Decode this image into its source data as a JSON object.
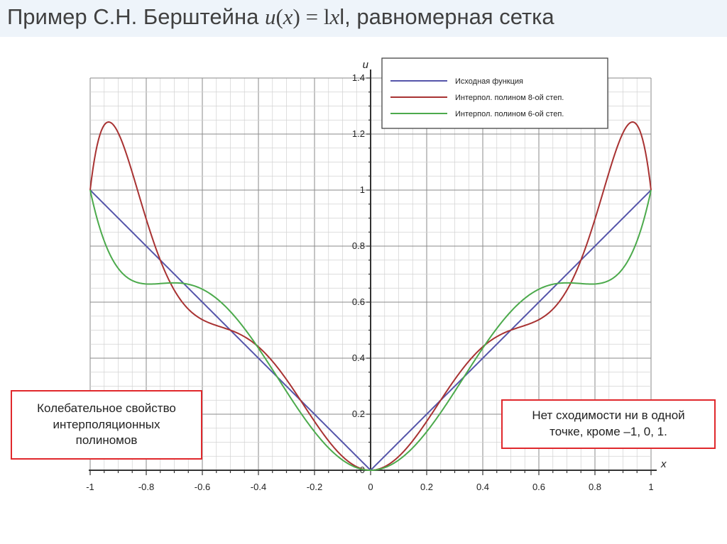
{
  "title": {
    "text_before": "Пример С.Н. Берштейна ",
    "fn_name": "u",
    "fn_open": "(",
    "fn_arg": "x",
    "fn_close": ")",
    "equals": " = l",
    "abs_arg": "x",
    "text_after": "l, равномерная сетка"
  },
  "notes": {
    "left": "Колебательное свойство\nинтерполяционных\nполиномов",
    "right": "Нет сходимости ни в одной\nточке, кроме –1, 0, 1."
  },
  "colors": {
    "original": "#5555aa",
    "poly8": "#a83232",
    "poly6": "#4caa4c",
    "note_border": "#e0282c",
    "title_bg": "#eef4fa"
  },
  "chart_data": {
    "type": "line",
    "xlabel": "x",
    "ylabel": "u",
    "xlim": [
      -1,
      1
    ],
    "ylim": [
      0,
      1.4
    ],
    "grid": true,
    "legend_position": "top-right",
    "x_ticks": [
      "-1",
      "-0.8",
      "-0.6",
      "-0.4",
      "-0.2",
      "0",
      "0.2",
      "0.4",
      "0.6",
      "0.8",
      "1"
    ],
    "y_ticks": [
      "0",
      "0.2",
      "0.4",
      "0.6",
      "0.8",
      "1",
      "1.2",
      "1.4"
    ],
    "y_tick_values": [
      0,
      0.2,
      0.4,
      0.6,
      0.8,
      1,
      1.2,
      1.4
    ],
    "series": [
      {
        "name": "Исходная функция",
        "color": "#5555aa",
        "function": "|x|",
        "nodes": null
      },
      {
        "name": "Интерпол. полином 8-ой степ.",
        "color": "#a83232",
        "function": "interpolating polynomial of |x|",
        "nodes": 9
      },
      {
        "name": "Интерпол. полином 6-ой степ.",
        "color": "#4caa4c",
        "function": "interpolating polynomial of |x|",
        "nodes": 7
      }
    ]
  }
}
